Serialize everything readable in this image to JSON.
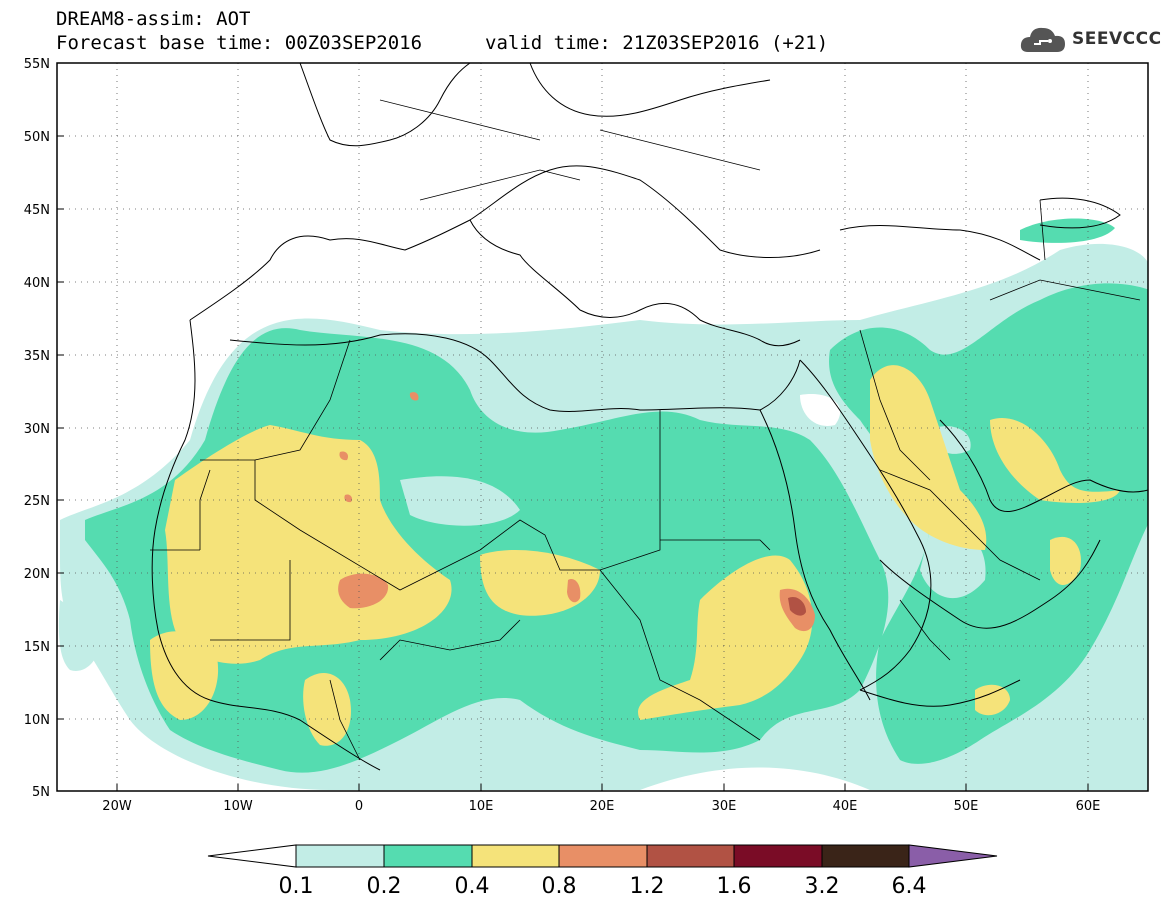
{
  "header": {
    "title": "DREAM8-assim: AOT",
    "base_time": "Forecast base time: 00Z03SEP2016",
    "valid_time": "valid time: 21Z03SEP2016 (+21)"
  },
  "logo": {
    "text": "SEEVCCC",
    "icon": "cloud-icon"
  },
  "map": {
    "lat_labels": [
      "55N",
      "50N",
      "45N",
      "40N",
      "35N",
      "30N",
      "25N",
      "20N",
      "15N",
      "10N",
      "5N"
    ],
    "lon_labels": [
      "20W",
      "10W",
      "0",
      "10E",
      "20E",
      "30E",
      "40E",
      "50E",
      "60E"
    ],
    "lon_range": [
      -25,
      65
    ],
    "lat_range": [
      5,
      55
    ]
  },
  "colorbar": {
    "labels": [
      "0.1",
      "0.2",
      "0.4",
      "0.8",
      "1.2",
      "1.6",
      "3.2",
      "6.4"
    ],
    "colors": [
      "#ffffff",
      "#c2ede6",
      "#55dcb0",
      "#f5e37a",
      "#e88f66",
      "#b15244",
      "#7a0c26",
      "#3a2418",
      "#8a5ea8"
    ]
  }
}
